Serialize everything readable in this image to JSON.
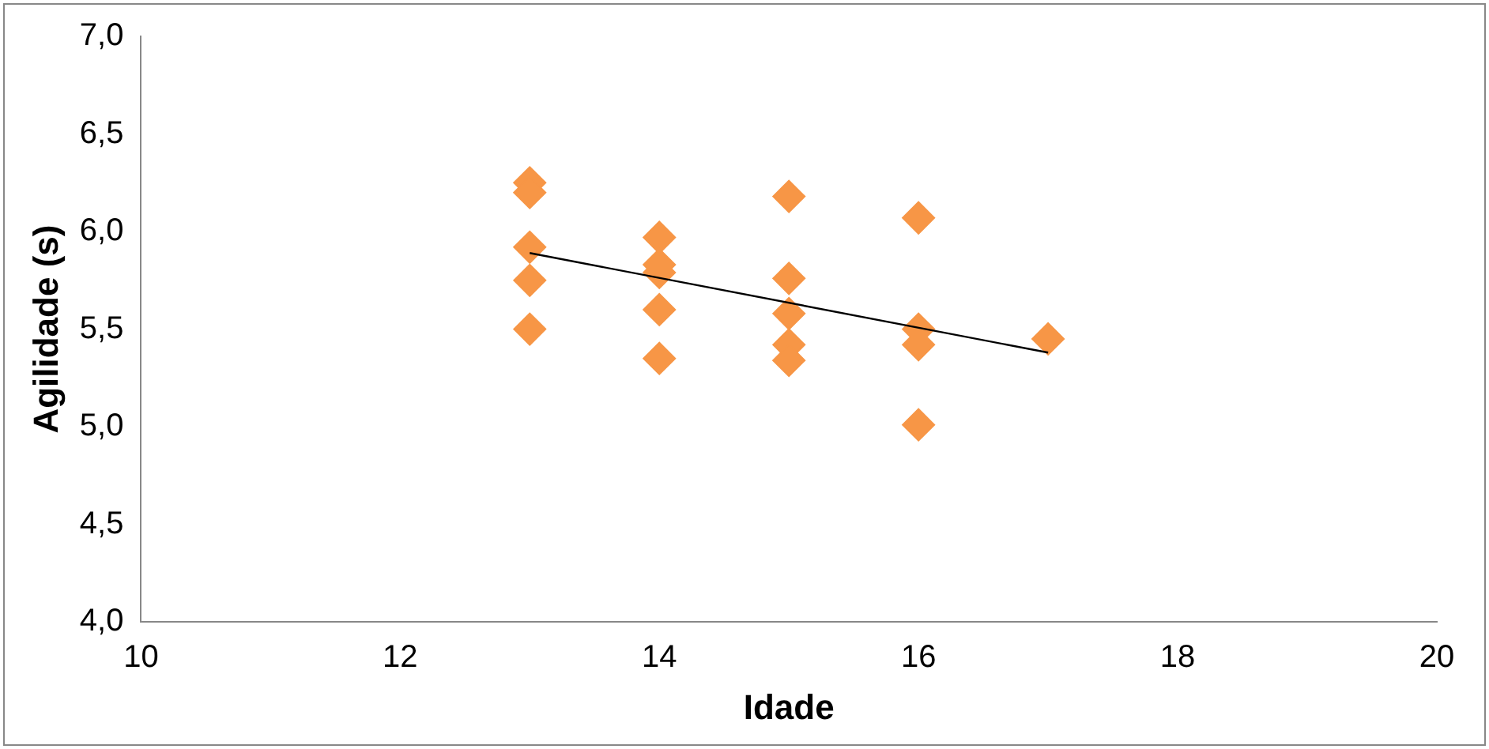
{
  "chart_data": {
    "type": "scatter",
    "xlabel": "Idade",
    "ylabel": "Agilidade (s)",
    "marker": "diamond",
    "grid": false,
    "legend": false,
    "xlim": [
      10,
      20
    ],
    "xticks": [
      10,
      12,
      14,
      16,
      18,
      20
    ],
    "ylim": [
      4,
      7
    ],
    "yticks": [
      {
        "value": 4,
        "label": "4,0"
      },
      {
        "value": 4.5,
        "label": "4,5"
      },
      {
        "value": 5,
        "label": "5,0"
      },
      {
        "value": 5.5,
        "label": "5,5"
      },
      {
        "value": 6,
        "label": "6,0"
      },
      {
        "value": 6.5,
        "label": "6,5"
      },
      {
        "value": 7,
        "label": "7,0"
      }
    ],
    "series": [
      {
        "color": "#f79646",
        "x": [
          13,
          13,
          13,
          13,
          13,
          14,
          14,
          14,
          14,
          14,
          15,
          15,
          15,
          15,
          15,
          16,
          16,
          16,
          16,
          17
        ],
        "values": [
          6.25,
          6.2,
          5.92,
          5.75,
          5.5,
          5.97,
          5.83,
          5.79,
          5.6,
          5.35,
          6.18,
          5.76,
          5.58,
          5.42,
          5.34,
          6.07,
          5.5,
          5.42,
          5.01,
          5.45
        ]
      },
      {
        "type": "line",
        "color": "#000000",
        "x": [
          13,
          17
        ],
        "values": [
          5.89,
          5.38
        ],
        "marker": "none"
      }
    ]
  }
}
